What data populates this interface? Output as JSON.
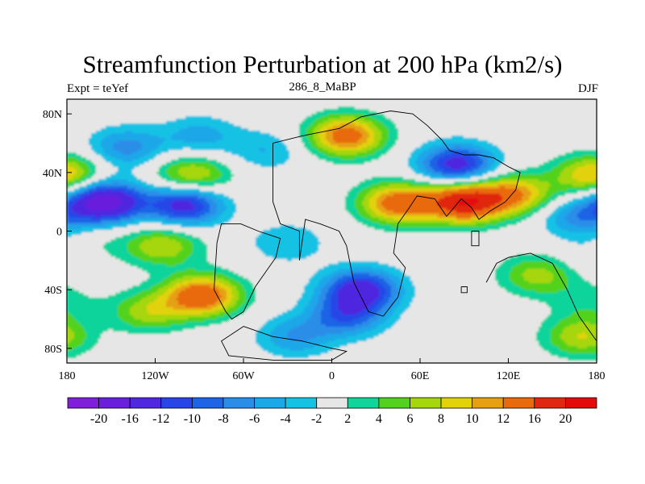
{
  "chart_data": {
    "type": "heatmap",
    "title": "Streamfunction Perturbation at 200 hPa (km2/s)",
    "left_label": "Expt = teYef",
    "center_label": "286_8_MaBP",
    "right_label": "DJF",
    "x_ticks": [
      "180",
      "120W",
      "60W",
      "0",
      "60E",
      "120E",
      "180"
    ],
    "x_tick_values": [
      -180,
      -120,
      -60,
      0,
      60,
      120,
      180
    ],
    "y_ticks": [
      "80N",
      "40N",
      "0",
      "40S",
      "80S"
    ],
    "y_tick_values": [
      80,
      40,
      0,
      -40,
      -80
    ],
    "xlim": [
      -180,
      180
    ],
    "ylim": [
      -90,
      90
    ],
    "levels": [
      -20,
      -16,
      -12,
      -10,
      -8,
      -6,
      -4,
      -2,
      2,
      4,
      6,
      8,
      10,
      12,
      16,
      20
    ],
    "level_labels": [
      "-20",
      "-16",
      "-12",
      "-10",
      "-8",
      "-6",
      "-4",
      "-2",
      "2",
      "4",
      "6",
      "8",
      "10",
      "12",
      "16",
      "20"
    ],
    "colors": [
      "#7f1fd9",
      "#6a1fdc",
      "#4f28e0",
      "#2846e8",
      "#1e64e6",
      "#2a8ee8",
      "#1aa8e8",
      "#14c2e4",
      "#e6e6e6",
      "#10d49a",
      "#52d21e",
      "#a6d60c",
      "#e2d20a",
      "#e6a012",
      "#e86a0c",
      "#e02810",
      "#e40a0a"
    ],
    "field_centers": [
      {
        "lon": -155,
        "lat": 20,
        "value": -19
      },
      {
        "lon": -140,
        "lat": 57,
        "value": -7
      },
      {
        "lon": -90,
        "lat": 65,
        "value": -5
      },
      {
        "lon": -45,
        "lat": 55,
        "value": -4
      },
      {
        "lon": -100,
        "lat": 18,
        "value": -14
      },
      {
        "lon": -30,
        "lat": -8,
        "value": -4
      },
      {
        "lon": 20,
        "lat": -40,
        "value": -14
      },
      {
        "lon": 10,
        "lat": -58,
        "value": -9
      },
      {
        "lon": -25,
        "lat": -72,
        "value": -6
      },
      {
        "lon": 85,
        "lat": 45,
        "value": -14
      },
      {
        "lon": 168,
        "lat": 10,
        "value": -7
      },
      {
        "lon": 180,
        "lat": -15,
        "value": -3
      },
      {
        "lon": 10,
        "lat": 65,
        "value": 14
      },
      {
        "lon": -95,
        "lat": 38,
        "value": 9
      },
      {
        "lon": 178,
        "lat": 38,
        "value": 11
      },
      {
        "lon": 45,
        "lat": 19,
        "value": 14
      },
      {
        "lon": 90,
        "lat": 20,
        "value": 19
      },
      {
        "lon": 125,
        "lat": 25,
        "value": 11
      },
      {
        "lon": -115,
        "lat": -10,
        "value": 8
      },
      {
        "lon": -165,
        "lat": -10,
        "value": 3
      },
      {
        "lon": -88,
        "lat": -44,
        "value": 15
      },
      {
        "lon": -125,
        "lat": -55,
        "value": 7
      },
      {
        "lon": 140,
        "lat": -30,
        "value": 7
      },
      {
        "lon": 170,
        "lat": -72,
        "value": 8
      },
      {
        "lon": 175,
        "lat": -48,
        "value": 3
      }
    ]
  }
}
